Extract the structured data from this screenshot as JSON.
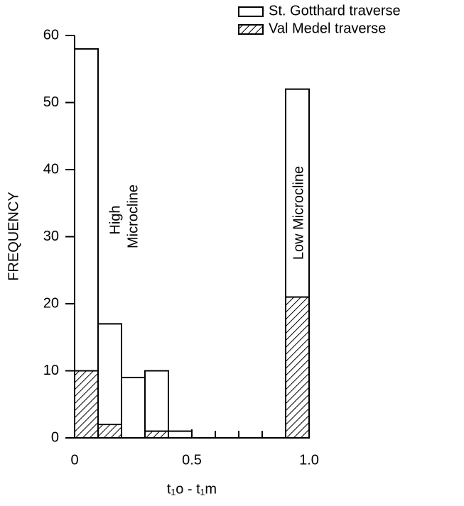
{
  "chart_data": {
    "type": "histogram",
    "xlabel": "t₁o - t₁m",
    "ylabel": "FREQUENCY",
    "bins": [
      0,
      0.1,
      0.2,
      0.3,
      0.4,
      0.5,
      0.6,
      0.7,
      0.8,
      0.9,
      1.0
    ],
    "series": [
      {
        "name": "St. Gotthard traverse",
        "color": "#ffffff",
        "hatch": false,
        "values": [
          58,
          17,
          9,
          10,
          1,
          0,
          0,
          0,
          0,
          52
        ]
      },
      {
        "name": "Val Medel traverse",
        "color": "#000000",
        "hatch": true,
        "values": [
          10,
          2,
          0,
          1,
          0,
          0,
          0,
          0,
          0,
          21
        ]
      }
    ],
    "xlim": [
      0,
      1.0
    ],
    "xticks": [
      0,
      0.5,
      {
        "value": 1.0,
        "label": "1.0"
      }
    ],
    "ylim": [
      0,
      60
    ],
    "yticks": [
      0,
      10,
      20,
      30,
      40,
      50,
      60
    ],
    "annotations": [
      "High",
      "Microcline",
      "Low Microcline"
    ],
    "legend": "upper right"
  }
}
